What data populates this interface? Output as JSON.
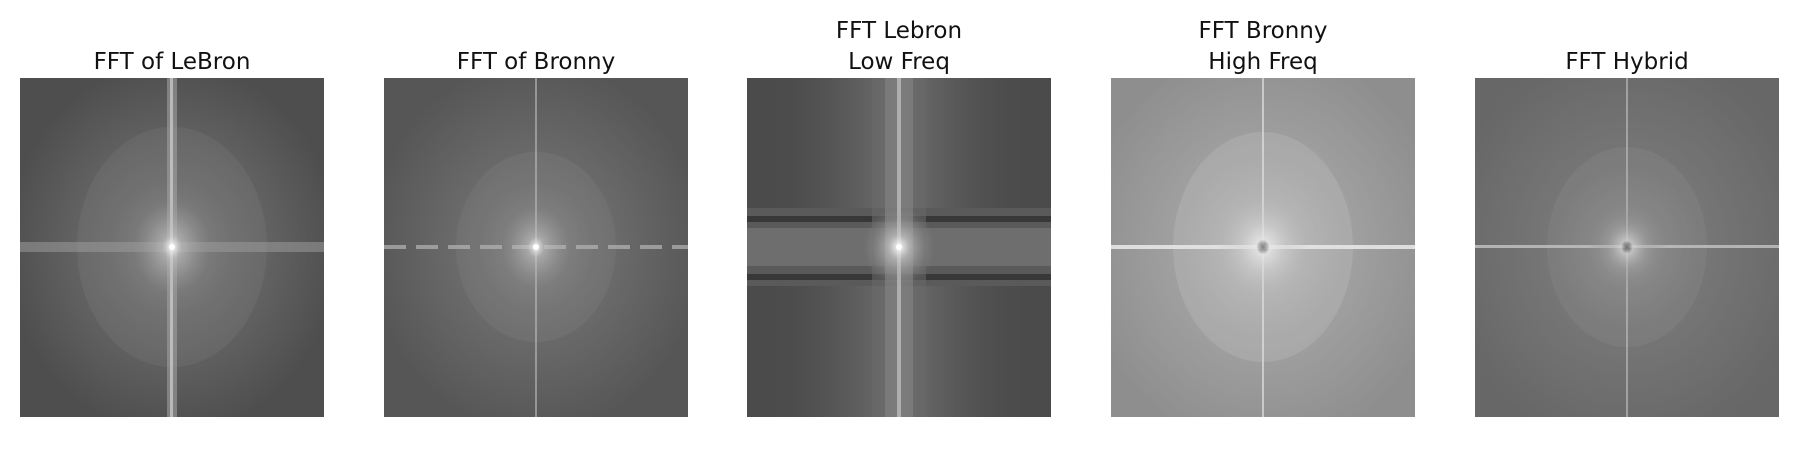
{
  "figure": {
    "panels": [
      {
        "id": "lebron",
        "title": "FFT of LeBron",
        "image": "fft-magnitude-lebron"
      },
      {
        "id": "bronny",
        "title": "FFT of Bronny",
        "image": "fft-magnitude-bronny"
      },
      {
        "id": "lebron-low",
        "title": "FFT Lebron\nLow Freq",
        "image": "fft-magnitude-lebron-lowpass"
      },
      {
        "id": "bronny-high",
        "title": "FFT Bronny\nHigh Freq",
        "image": "fft-magnitude-bronny-highpass"
      },
      {
        "id": "hybrid",
        "title": "FFT Hybrid",
        "image": "fft-magnitude-hybrid"
      }
    ]
  }
}
